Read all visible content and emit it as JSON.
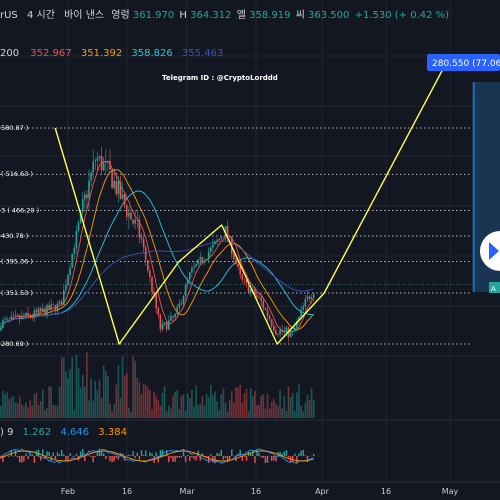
{
  "header": {
    "symbol_fragment": "rUS",
    "interval": "4 시간",
    "exchange": "바이 낸스",
    "open_label": "영렁",
    "open_value": "361.970",
    "high_label": "H",
    "high_value": "364.312",
    "low_label": "엘",
    "low_value": "358.919",
    "close_label": "씨",
    "close_value": "363.500",
    "change": "+1.530 (+ 0.42 %)"
  },
  "ma_row": {
    "length": "200",
    "values": [
      "352.967",
      "351.392",
      "358.826",
      "355.463"
    ],
    "colors": [
      "#ef5350",
      "#ff9800",
      "#26c6da",
      "#3f51b5"
    ]
  },
  "watermark": "Telegram ID : @CryptoLorddd",
  "price_tag": "280.550 (77.06",
  "range_tag": "A",
  "macd_row": {
    "label": ") 9",
    "values": [
      "1.262",
      "4.646",
      "3.384"
    ],
    "colors": [
      "#26a69a",
      "#2196f3",
      "#ff9800"
    ]
  },
  "level_labels": [
    {
      "text": "580.87 )",
      "price": 580.87
    },
    {
      "text": "( 516.63 )",
      "price": 516.63
    },
    {
      "text": "3 ( 466.20 )",
      "price": 466.2
    },
    {
      "text": "430.78 )",
      "price": 430.78
    },
    {
      "text": "( 395.36 )",
      "price": 395.36
    },
    {
      "text": "( 351.53 )",
      "price": 351.53
    },
    {
      "text": "280.69 )",
      "price": 280.69
    }
  ],
  "x_axis": {
    "ticks": [
      "Feb",
      "16",
      "Mar",
      "16",
      "Apr",
      "16",
      "May"
    ]
  },
  "chart_data": {
    "type": "line",
    "note_series": "projection",
    "projection": {
      "dates": [
        "2021-01-29",
        "2021-02-13",
        "2021-02-27",
        "2021-03-09",
        "2021-03-22",
        "2021-04-02",
        "2021-05-01"
      ],
      "prices": [
        580.87,
        280.69,
        395.36,
        446,
        280.69,
        351.53,
        676
      ]
    },
    "levels": [
      580.87,
      516.63,
      466.2,
      430.78,
      395.36,
      351.53,
      280.69
    ],
    "current_price": 363.5
  }
}
